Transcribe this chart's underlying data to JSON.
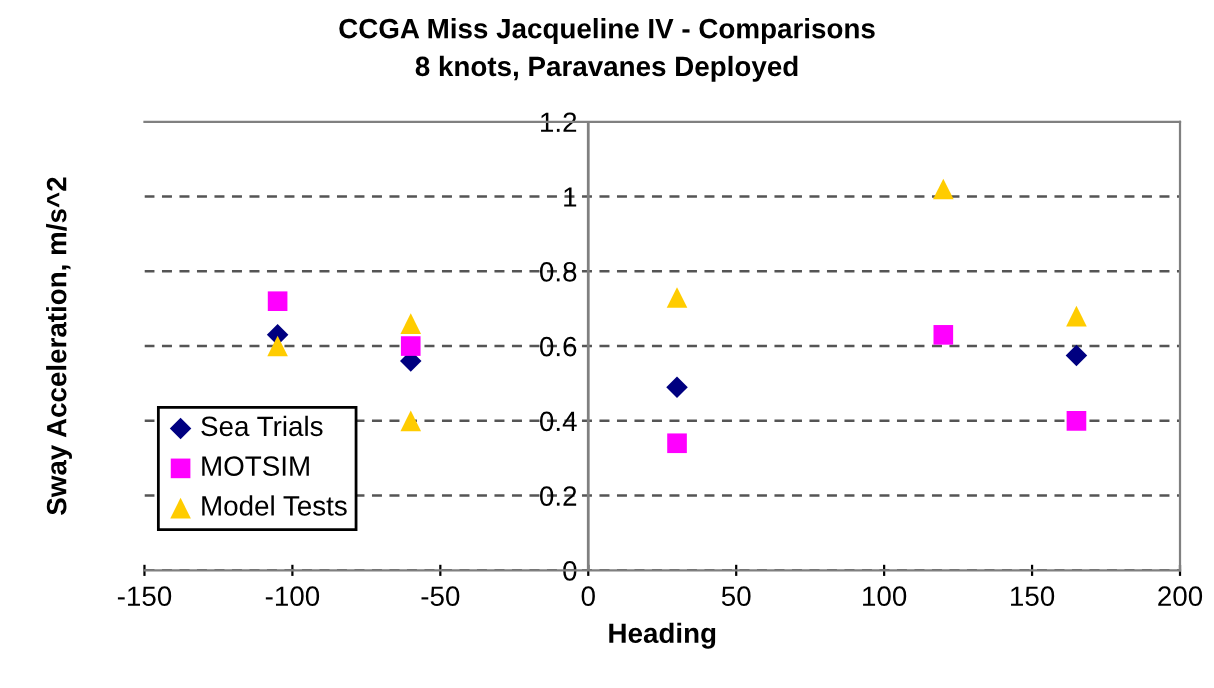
{
  "chart_data": {
    "type": "scatter",
    "title": "CCGA Miss Jacqueline IV - Comparisons",
    "subtitle": "8 knots, Paravanes Deployed",
    "xlabel": "Heading",
    "ylabel": "Sway Acceleration, m/s^2",
    "series": [
      {
        "name": "Sea Trials",
        "color": "#000080",
        "marker": "diamond",
        "x": [
          -105,
          -60,
          30,
          120,
          165
        ],
        "values": [
          0.63,
          0.56,
          0.49,
          null,
          0.575
        ]
      },
      {
        "name": "MOTSIM",
        "color": "#ff00ff",
        "marker": "square",
        "x": [
          -105,
          -60,
          30,
          120,
          165
        ],
        "values": [
          0.72,
          0.6,
          0.34,
          0.63,
          0.4
        ]
      },
      {
        "name": "Model Tests",
        "color": "#ffcc00",
        "marker": "triangle",
        "x": [
          -105,
          -60,
          -60,
          30,
          120,
          165
        ],
        "values": [
          0.6,
          0.66,
          0.4,
          0.73,
          1.02,
          0.68
        ]
      }
    ],
    "xlim": [
      -150,
      200
    ],
    "xticks": [
      -150,
      -100,
      -50,
      0,
      50,
      100,
      150,
      200
    ],
    "ylim": [
      0,
      1.2
    ],
    "yticks": [
      0,
      0.2,
      0.4,
      0.6,
      0.8,
      1,
      1.2
    ],
    "grid": "y",
    "legend": "bottom left"
  }
}
